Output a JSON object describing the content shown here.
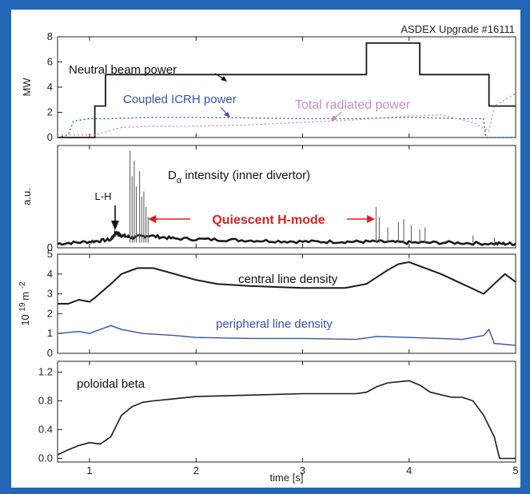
{
  "colors": {
    "frame_background": "#2266b5",
    "panel_background": "#ffffff",
    "black_trace": "#1a1a1a",
    "blue_trace": "#3a4fb0",
    "pink_trace": "#c48ec4",
    "red_annotation": "#d82222"
  },
  "chart_data": [
    {
      "type": "line",
      "title": "ASDEX Upgrade #16111",
      "ylabel": "MW",
      "ylim": [
        0,
        8
      ],
      "xlim": [
        0.7,
        5.0
      ],
      "yticks": [
        "0",
        "2",
        "4",
        "6",
        "8"
      ],
      "series": [
        {
          "name": "Neutral beam power",
          "style": "solid",
          "x": [
            0.7,
            1.05,
            1.05,
            1.15,
            1.15,
            3.6,
            3.6,
            4.1,
            4.1,
            4.75,
            4.75,
            5.0
          ],
          "values": [
            0,
            0,
            2.5,
            2.5,
            5,
            5,
            7.5,
            7.5,
            5,
            5,
            2.5,
            2.5
          ]
        },
        {
          "name": "Coupled ICRH power",
          "style": "dotted",
          "x": [
            0.7,
            0.8,
            0.85,
            1.0,
            1.2,
            1.6,
            2.0,
            3.0,
            3.5,
            4.0,
            4.5,
            4.7,
            4.72,
            5.0
          ],
          "values": [
            0,
            0.2,
            1.3,
            1.5,
            1.5,
            1.6,
            1.6,
            1.5,
            1.5,
            1.6,
            1.5,
            1.5,
            0,
            0
          ]
        },
        {
          "name": "Total radiated power",
          "style": "dotted",
          "x": [
            0.7,
            1.05,
            1.3,
            1.6,
            2.0,
            2.5,
            3.0,
            3.5,
            3.8,
            4.0,
            4.3,
            4.6,
            4.75,
            4.8,
            5.0
          ],
          "values": [
            0.2,
            0.2,
            0.8,
            0.9,
            0.9,
            1.0,
            1.2,
            1.4,
            1.6,
            1.7,
            1.8,
            1.2,
            0.5,
            2.5,
            3.5
          ]
        }
      ],
      "annotations": [
        "Neutral beam power",
        "Coupled ICRH power",
        "Total radiated power"
      ]
    },
    {
      "type": "line",
      "ylabel": "a.u.",
      "xlim": [
        0.7,
        5.0
      ],
      "yticks": [
        "0"
      ],
      "series": [
        {
          "name": "intensity (inner divertor)",
          "style": "solid",
          "x": [
            0.7,
            1.0,
            1.2,
            1.25,
            1.3,
            1.4,
            1.55,
            1.8,
            2.2,
            2.6,
            3.0,
            3.4,
            3.7,
            4.0,
            4.4,
            4.8,
            5.0
          ],
          "values": [
            0.04,
            0.06,
            0.08,
            0.15,
            0.12,
            0.1,
            0.12,
            0.09,
            0.08,
            0.07,
            0.06,
            0.06,
            0.06,
            0.05,
            0.05,
            0.04,
            0.04
          ]
        }
      ],
      "spikes": [
        {
          "x": 1.38,
          "v": 0.95
        },
        {
          "x": 1.4,
          "v": 0.7
        },
        {
          "x": 1.42,
          "v": 0.85
        },
        {
          "x": 1.44,
          "v": 0.6
        },
        {
          "x": 1.47,
          "v": 0.75
        },
        {
          "x": 1.49,
          "v": 0.5
        },
        {
          "x": 1.51,
          "v": 0.55
        },
        {
          "x": 1.53,
          "v": 0.4
        },
        {
          "x": 1.55,
          "v": 0.3
        },
        {
          "x": 3.69,
          "v": 0.4
        },
        {
          "x": 3.72,
          "v": 0.3
        },
        {
          "x": 3.8,
          "v": 0.2
        },
        {
          "x": 3.9,
          "v": 0.25
        },
        {
          "x": 3.95,
          "v": 0.28
        },
        {
          "x": 4.02,
          "v": 0.22
        },
        {
          "x": 4.1,
          "v": 0.18
        },
        {
          "x": 4.15,
          "v": 0.2
        },
        {
          "x": 4.6,
          "v": 0.12
        },
        {
          "x": 4.8,
          "v": 0.1
        }
      ],
      "label_main": "D",
      "label_sub": "α",
      "label_rest": "intensity (inner divertor)",
      "lh_label": "L-H",
      "qh_label": "Quiescent H-mode",
      "qh_range": [
        1.55,
        3.68
      ]
    },
    {
      "type": "line",
      "ylabel": "10 19 m -2",
      "ylim": [
        0,
        5
      ],
      "xlim": [
        0.7,
        5.0
      ],
      "yticks": [
        "0",
        "1",
        "2",
        "3",
        "4",
        "5"
      ],
      "series": [
        {
          "name": "central line density",
          "style": "solid",
          "x": [
            0.7,
            0.8,
            0.9,
            1.0,
            1.05,
            1.2,
            1.3,
            1.45,
            1.6,
            1.8,
            2.0,
            2.2,
            2.5,
            3.0,
            3.4,
            3.6,
            3.8,
            3.9,
            4.0,
            4.1,
            4.3,
            4.5,
            4.7,
            4.8,
            4.9,
            5.0
          ],
          "values": [
            2.5,
            2.5,
            2.7,
            2.6,
            2.8,
            3.5,
            4.0,
            4.3,
            4.3,
            4.0,
            3.7,
            3.5,
            3.4,
            3.3,
            3.3,
            3.5,
            4.2,
            4.5,
            4.6,
            4.4,
            4.0,
            3.5,
            3.0,
            3.5,
            4.0,
            3.6
          ]
        },
        {
          "name": "peripheral line density",
          "style": "solid",
          "x": [
            0.7,
            0.9,
            1.0,
            1.1,
            1.2,
            1.3,
            1.5,
            1.8,
            2.0,
            2.5,
            3.0,
            3.5,
            3.7,
            4.0,
            4.3,
            4.5,
            4.7,
            4.75,
            4.8,
            5.0
          ],
          "values": [
            1.0,
            1.1,
            1.0,
            1.2,
            1.4,
            1.2,
            1.0,
            0.9,
            0.8,
            0.75,
            0.75,
            0.7,
            0.85,
            0.8,
            0.75,
            0.7,
            0.9,
            1.2,
            0.5,
            0.4
          ]
        }
      ],
      "annotations": [
        "central line density",
        "peripheral line density"
      ]
    },
    {
      "type": "line",
      "xlabel": "time [s]",
      "ylim": [
        0,
        1.3
      ],
      "xlim": [
        0.7,
        5.0
      ],
      "yticks": [
        "0.0",
        "0.4",
        "0.8",
        "1.2"
      ],
      "xticks": [
        "1",
        "2",
        "3",
        "4",
        "5"
      ],
      "series": [
        {
          "name": "poloidal beta",
          "style": "solid",
          "x": [
            0.7,
            0.8,
            0.9,
            1.0,
            1.1,
            1.2,
            1.3,
            1.4,
            1.5,
            1.6,
            1.8,
            2.0,
            2.5,
            3.0,
            3.5,
            3.6,
            3.7,
            3.8,
            4.0,
            4.1,
            4.2,
            4.4,
            4.5,
            4.6,
            4.7,
            4.8,
            4.85,
            5.0
          ],
          "values": [
            0.05,
            0.12,
            0.18,
            0.22,
            0.2,
            0.3,
            0.6,
            0.72,
            0.78,
            0.8,
            0.83,
            0.86,
            0.88,
            0.9,
            0.9,
            0.92,
            1.0,
            1.05,
            1.08,
            1.02,
            0.92,
            0.85,
            0.85,
            0.8,
            0.6,
            0.3,
            0.0,
            0.0
          ]
        }
      ],
      "annotations": [
        "poloidal beta"
      ]
    }
  ]
}
